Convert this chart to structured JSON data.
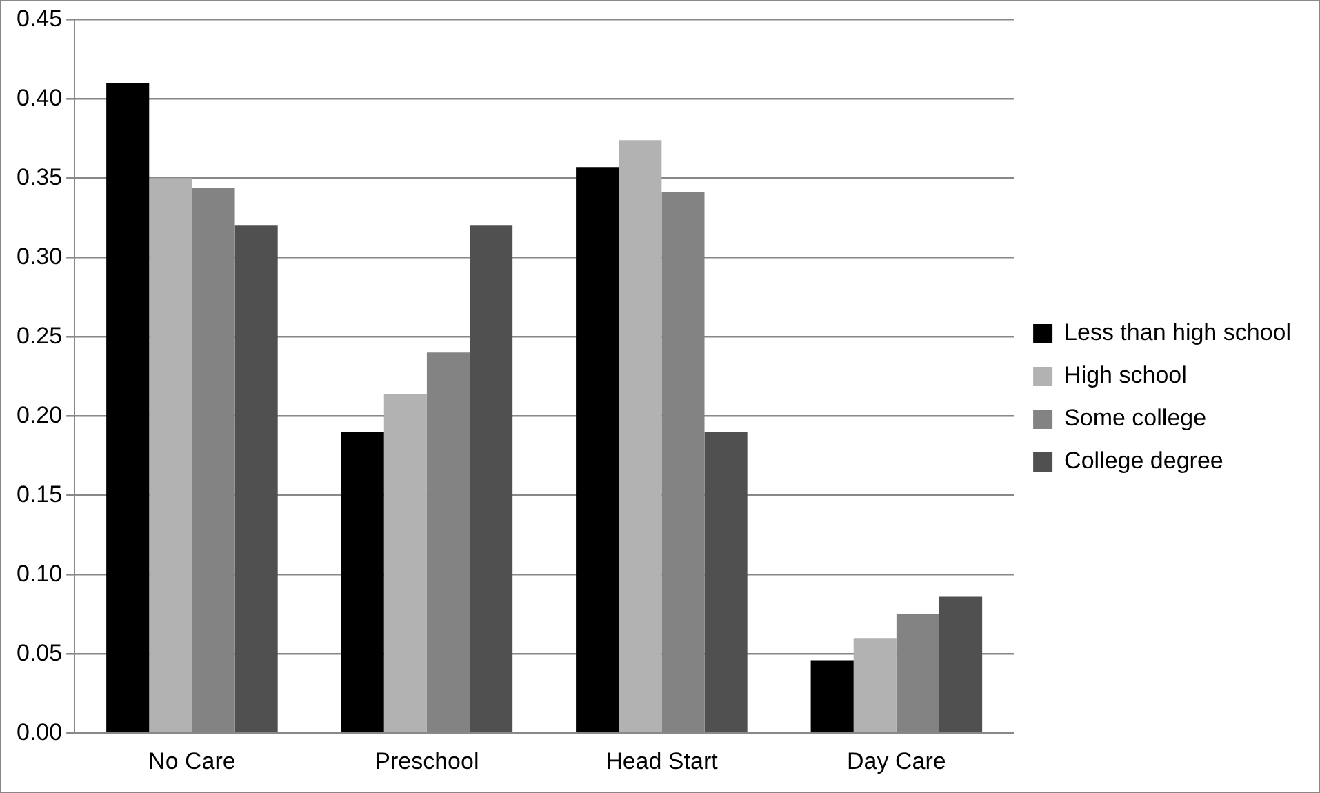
{
  "chart_data": {
    "type": "bar",
    "categories": [
      "No Care",
      "Preschool",
      "Head Start",
      "Day Care"
    ],
    "series": [
      {
        "name": "Less than high school",
        "color": "#000000",
        "values": [
          0.41,
          0.19,
          0.357,
          0.046
        ]
      },
      {
        "name": "High school",
        "color": "#b2b2b2",
        "values": [
          0.35,
          0.214,
          0.374,
          0.06
        ]
      },
      {
        "name": "Some college",
        "color": "#838383",
        "values": [
          0.344,
          0.24,
          0.341,
          0.075
        ]
      },
      {
        "name": "College degree",
        "color": "#505050",
        "values": [
          0.32,
          0.32,
          0.19,
          0.086
        ]
      }
    ],
    "ylim": [
      0,
      0.45
    ],
    "yticks": [
      {
        "value": 0,
        "label": "0.00"
      },
      {
        "value": 0.05,
        "label": "0.05"
      },
      {
        "value": 0.1,
        "label": "0.10"
      },
      {
        "value": 0.15,
        "label": "0.15"
      },
      {
        "value": 0.2,
        "label": "0.20"
      },
      {
        "value": 0.25,
        "label": "0.25"
      },
      {
        "value": 0.3,
        "label": "0.30"
      },
      {
        "value": 0.35,
        "label": "0.35"
      },
      {
        "value": 0.4,
        "label": "0.40"
      },
      {
        "value": 0.45,
        "label": "0.45"
      }
    ],
    "grid": "y",
    "legend": "right"
  }
}
